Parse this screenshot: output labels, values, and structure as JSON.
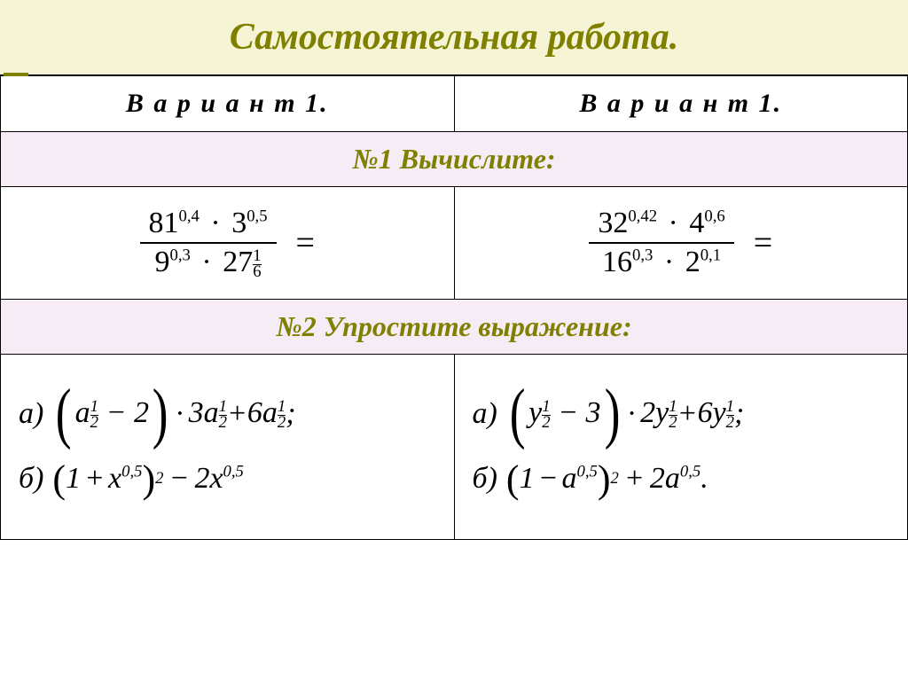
{
  "title": {
    "text": "Самостоятельная  работа.",
    "color": "#808000",
    "bg": "#f5f5d5"
  },
  "variant": {
    "left": "В а р и а н т 1.",
    "right": "В а р и а н т 1."
  },
  "section1": {
    "text": "№1  Вычислите:",
    "color": "#808000",
    "bg": "#f6ecf6"
  },
  "prob1": {
    "left": {
      "num": {
        "b1": "81",
        "e1": "0,4",
        "b2": "3",
        "e2": "0,5"
      },
      "den": {
        "b1": "9",
        "e1": "0,3",
        "b2": "27",
        "frac_top": "1",
        "frac_bot": "6"
      }
    },
    "right": {
      "num": {
        "b1": "32",
        "e1": "0,42",
        "b2": "4",
        "e2": "0,6"
      },
      "den": {
        "b1": "16",
        "e1": "0,3",
        "b2": "2",
        "e2": "0,1"
      }
    }
  },
  "section2": {
    "text": "№2 Упростите  выражение:",
    "color": "#808000",
    "bg": "#f6ecf6"
  },
  "prob2": {
    "left": {
      "a": {
        "label": "а)",
        "v": "a",
        "ft": "1",
        "fb": "2",
        "minus": "2",
        "k2": "3",
        "k3": "6"
      },
      "b": {
        "label": "б)",
        "inner_sign": "+",
        "v": "x",
        "e": "0,5",
        "pow": "2",
        "outer_sign": "−",
        "k": "2"
      }
    },
    "right": {
      "a": {
        "label": "а)",
        "v": "y",
        "ft": "1",
        "fb": "2",
        "minus": "3",
        "k2": "2",
        "k3": "6"
      },
      "b": {
        "label": "б)",
        "inner_sign": "−",
        "v": "a",
        "e": "0,5",
        "pow": "2",
        "outer_sign": "+",
        "k": "2",
        "period": "."
      }
    }
  },
  "colors": {
    "text": "#000000"
  }
}
